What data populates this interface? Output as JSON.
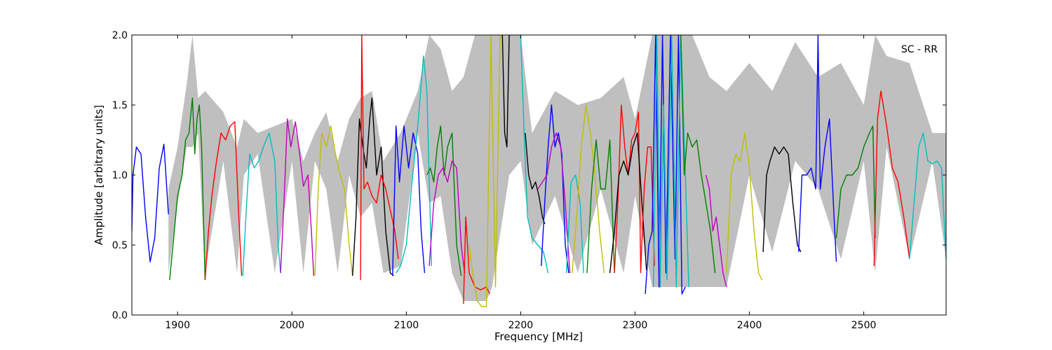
{
  "chart_data": {
    "type": "line",
    "title": "",
    "xlabel": "Frequency [MHz]",
    "ylabel": "Amplitude [arbitrary units]",
    "xlim": [
      1860,
      2572
    ],
    "ylim": [
      0,
      2.0
    ],
    "xticks": [
      1900,
      2000,
      2100,
      2200,
      2300,
      2400,
      2500
    ],
    "yticks": [
      0.0,
      0.5,
      1.0,
      1.5,
      2.0
    ],
    "xtick_labels": [
      "1900",
      "2000",
      "2100",
      "2200",
      "2300",
      "2400",
      "2500"
    ],
    "ytick_labels": [
      "0.0",
      "0.5",
      "1.0",
      "1.5",
      "2.0"
    ],
    "annotation": "SC - RR",
    "annotation_position": "top-right",
    "grid": false,
    "envelope": {
      "color": "#bfbfbf",
      "x": [
        1892,
        1900,
        1908,
        1913,
        1918,
        1924,
        1940,
        1952,
        1958,
        1970,
        1985,
        2000,
        2010,
        2020,
        2030,
        2040,
        2050,
        2060,
        2070,
        2080,
        2095,
        2110,
        2120,
        2130,
        2140,
        2150,
        2160,
        2170,
        2175,
        2190,
        2200,
        2210,
        2230,
        2250,
        2270,
        2290,
        2300,
        2315,
        2330,
        2350,
        2365,
        2380,
        2400,
        2420,
        2440,
        2460,
        2480,
        2500,
        2510,
        2520,
        2540,
        2560,
        2572
      ],
      "upper": [
        0.9,
        1.2,
        1.65,
        2.0,
        1.55,
        1.6,
        1.45,
        1.2,
        1.4,
        1.3,
        1.35,
        1.4,
        1.1,
        1.3,
        1.45,
        1.1,
        1.4,
        1.55,
        1.6,
        1.1,
        1.3,
        1.6,
        2.0,
        1.9,
        1.6,
        1.7,
        2.0,
        2.0,
        2.0,
        2.0,
        2.0,
        1.3,
        1.6,
        1.5,
        1.55,
        1.7,
        1.4,
        2.0,
        2.0,
        2.0,
        1.7,
        1.6,
        1.8,
        1.6,
        1.95,
        1.7,
        1.8,
        1.5,
        2.0,
        1.85,
        1.8,
        1.3,
        1.3
      ],
      "lower": [
        0.3,
        0.8,
        1.2,
        1.2,
        1.3,
        0.3,
        1.1,
        0.3,
        1.0,
        1.15,
        0.3,
        1.1,
        0.3,
        1.1,
        0.9,
        0.3,
        1.0,
        0.7,
        0.8,
        0.3,
        0.35,
        1.3,
        0.8,
        0.85,
        0.3,
        0.1,
        0.1,
        0.1,
        0.2,
        1.0,
        1.1,
        0.5,
        0.85,
        0.3,
        0.9,
        0.3,
        0.85,
        0.2,
        0.2,
        0.2,
        0.2,
        0.2,
        1.0,
        0.45,
        1.1,
        0.9,
        0.4,
        1.1,
        0.3,
        1.2,
        0.4,
        1.1,
        0.4
      ]
    },
    "series": [
      {
        "color": "#0000ff",
        "x": [
          1860,
          1861,
          1864,
          1868,
          1872,
          1876,
          1880,
          1884,
          1888,
          1892
        ],
        "y": [
          0.6,
          1.0,
          1.2,
          1.15,
          0.7,
          0.38,
          0.55,
          1.05,
          1.22,
          0.72
        ]
      },
      {
        "color": "#008000",
        "x": [
          1893,
          1896,
          1900,
          1904,
          1907,
          1910,
          1913,
          1915,
          1917,
          1919,
          1921,
          1924
        ],
        "y": [
          0.25,
          0.5,
          0.85,
          1.0,
          1.25,
          1.3,
          1.55,
          1.15,
          1.4,
          1.5,
          1.2,
          0.25
        ]
      },
      {
        "color": "#ff0000",
        "x": [
          1924,
          1927,
          1930,
          1934,
          1938,
          1942,
          1946,
          1950,
          1953,
          1956
        ],
        "y": [
          0.25,
          0.6,
          0.85,
          1.1,
          1.3,
          1.25,
          1.35,
          1.38,
          0.8,
          0.28
        ]
      },
      {
        "color": "#00bfbf",
        "x": [
          1957,
          1960,
          1963,
          1967,
          1971,
          1975,
          1980,
          1985,
          1988,
          1990
        ],
        "y": [
          0.28,
          0.75,
          1.15,
          1.05,
          1.1,
          1.2,
          1.3,
          1.1,
          0.5,
          0.3
        ]
      },
      {
        "color": "#bf00bf",
        "x": [
          1990,
          1993,
          1996,
          1999,
          2003,
          2006,
          2010,
          2014,
          2017,
          2019
        ],
        "y": [
          0.3,
          0.8,
          1.4,
          1.2,
          1.38,
          1.2,
          0.92,
          1.0,
          0.6,
          0.28
        ]
      },
      {
        "color": "#bfbf00",
        "x": [
          2020,
          2023,
          2026,
          2030,
          2034,
          2038,
          2042,
          2046,
          2050,
          2053
        ],
        "y": [
          0.28,
          0.9,
          1.3,
          1.2,
          1.35,
          1.15,
          1.0,
          0.9,
          0.5,
          0.28
        ]
      },
      {
        "color": "#000000",
        "x": [
          2053,
          2056,
          2059,
          2062,
          2065,
          2068,
          2070,
          2074,
          2078,
          2082,
          2086,
          2089
        ],
        "y": [
          0.28,
          0.7,
          1.4,
          1.2,
          1.05,
          1.4,
          1.55,
          1.0,
          1.2,
          0.6,
          0.3,
          0.28
        ]
      },
      {
        "color": "#ff0000",
        "x": [
          2060,
          2061,
          2063,
          2066,
          2070,
          2074,
          2078,
          2082,
          2086,
          2090,
          2093
        ],
        "y": [
          0.25,
          2.0,
          0.9,
          0.95,
          0.85,
          0.8,
          1.0,
          0.9,
          0.75,
          0.6,
          0.4
        ]
      },
      {
        "color": "#0000ff",
        "x": [
          2088,
          2091,
          2094,
          2098,
          2102,
          2106,
          2110,
          2113,
          2116
        ],
        "y": [
          0.28,
          1.35,
          0.95,
          1.35,
          1.05,
          1.3,
          1.15,
          0.6,
          0.3
        ]
      },
      {
        "color": "#00bfbf",
        "x": [
          2091,
          2095,
          2100,
          2105,
          2110,
          2115,
          2118,
          2122
        ],
        "y": [
          0.3,
          0.35,
          0.5,
          0.95,
          1.35,
          1.85,
          1.6,
          0.35
        ]
      },
      {
        "color": "#008000",
        "x": [
          2118,
          2121,
          2124,
          2127,
          2130,
          2133,
          2136,
          2140,
          2144,
          2148
        ],
        "y": [
          1.0,
          1.05,
          0.95,
          1.2,
          1.35,
          1.0,
          1.2,
          1.3,
          0.5,
          0.28
        ]
      },
      {
        "color": "#bf00bf",
        "x": [
          2120,
          2124,
          2128,
          2132,
          2136,
          2140,
          2144,
          2148,
          2151
        ],
        "y": [
          0.35,
          0.8,
          1.0,
          1.05,
          0.95,
          1.1,
          1.05,
          0.5,
          0.3
        ]
      },
      {
        "color": "#ff0000",
        "x": [
          2150,
          2152,
          2155,
          2160,
          2165,
          2170,
          2173
        ],
        "y": [
          0.08,
          0.7,
          0.3,
          0.2,
          0.18,
          0.2,
          0.15
        ]
      },
      {
        "color": "#bfbf00",
        "x": [
          2155,
          2158,
          2162,
          2166,
          2170,
          2174,
          2178,
          2182
        ],
        "y": [
          0.5,
          0.3,
          0.1,
          0.06,
          0.06,
          2.0,
          0.2,
          2.0
        ]
      },
      {
        "color": "#000000",
        "x": [
          2184,
          2186,
          2188,
          2190
        ],
        "y": [
          2.0,
          1.3,
          1.2,
          2.0
        ]
      },
      {
        "color": "#00bfbf",
        "x": [
          2200,
          2203,
          2206,
          2210,
          2215,
          2220,
          2224
        ],
        "y": [
          2.0,
          1.3,
          0.7,
          0.55,
          0.5,
          0.45,
          0.3
        ]
      },
      {
        "color": "#000000",
        "x": [
          2204,
          2207,
          2210,
          2213,
          2216,
          2219,
          2221
        ],
        "y": [
          1.3,
          1.0,
          0.9,
          0.95,
          0.85,
          0.7,
          0.65
        ]
      },
      {
        "color": "#0000ff",
        "x": [
          2218,
          2221,
          2224,
          2227,
          2230,
          2233,
          2236,
          2239,
          2242
        ],
        "y": [
          0.35,
          0.8,
          1.2,
          1.5,
          1.2,
          1.3,
          1.15,
          0.5,
          0.3
        ]
      },
      {
        "color": "#bf00bf",
        "x": [
          2215,
          2219,
          2223,
          2227,
          2231,
          2235,
          2239,
          2243
        ],
        "y": [
          0.9,
          0.95,
          1.0,
          1.2,
          1.3,
          1.2,
          0.8,
          0.3
        ]
      },
      {
        "color": "#00bfbf",
        "x": [
          2240,
          2244,
          2248,
          2252,
          2255
        ],
        "y": [
          0.3,
          0.95,
          1.0,
          0.8,
          0.3
        ]
      },
      {
        "color": "#bfbf00",
        "x": [
          2245,
          2249,
          2253,
          2257,
          2261,
          2265,
          2269,
          2273
        ],
        "y": [
          0.3,
          0.7,
          1.2,
          1.5,
          1.3,
          1.0,
          0.6,
          0.3
        ]
      },
      {
        "color": "#008000",
        "x": [
          2258,
          2262,
          2266,
          2270,
          2274,
          2278,
          2282
        ],
        "y": [
          0.3,
          0.9,
          1.25,
          0.9,
          0.9,
          1.25,
          0.3
        ]
      },
      {
        "color": "#ff0000",
        "x": [
          2282,
          2285,
          2288,
          2291,
          2294,
          2297,
          2300,
          2303,
          2305
        ],
        "y": [
          0.3,
          0.8,
          1.5,
          1.2,
          1.0,
          1.25,
          1.3,
          1.45,
          0.3
        ]
      },
      {
        "color": "#000000",
        "x": [
          2278,
          2282,
          2286,
          2290,
          2294,
          2298,
          2302,
          2306,
          2310
        ],
        "y": [
          0.3,
          0.6,
          1.0,
          1.1,
          1.0,
          1.2,
          1.3,
          0.8,
          0.32
        ]
      },
      {
        "color": "#ff0000",
        "x": [
          2305,
          2308,
          2311,
          2314,
          2317
        ],
        "y": [
          0.32,
          0.9,
          1.2,
          1.2,
          0.35
        ]
      },
      {
        "color": "#0000ff",
        "x": [
          2309,
          2312,
          2315,
          2318,
          2321,
          2324,
          2327,
          2331,
          2335,
          2338,
          2341,
          2344
        ],
        "y": [
          0.15,
          0.5,
          0.6,
          2.0,
          0.2,
          2.0,
          0.3,
          2.0,
          0.4,
          2.0,
          0.15,
          0.2
        ]
      },
      {
        "color": "#00bfbf",
        "x": [
          2316,
          2319,
          2322,
          2325,
          2328,
          2332,
          2336,
          2340,
          2344,
          2347
        ],
        "y": [
          0.2,
          2.0,
          0.2,
          1.5,
          0.25,
          2.0,
          0.2,
          2.0,
          1.0,
          0.2
        ]
      },
      {
        "color": "#008000",
        "x": [
          2340,
          2343,
          2346,
          2350,
          2354,
          2358,
          2362,
          2366,
          2370
        ],
        "y": [
          2.0,
          1.0,
          1.3,
          1.2,
          1.25,
          1.0,
          0.8,
          0.6,
          0.3
        ]
      },
      {
        "color": "#bf00bf",
        "x": [
          2362,
          2365,
          2368,
          2371,
          2374,
          2377,
          2380
        ],
        "y": [
          1.0,
          0.9,
          0.6,
          0.7,
          0.5,
          0.3,
          0.2
        ]
      },
      {
        "color": "#bfbf00",
        "x": [
          2380,
          2384,
          2388,
          2392,
          2396,
          2400,
          2404,
          2408,
          2411
        ],
        "y": [
          0.3,
          1.0,
          1.15,
          1.1,
          1.3,
          1.05,
          0.6,
          0.3,
          0.25
        ]
      },
      {
        "color": "#000000",
        "x": [
          2412,
          2415,
          2418,
          2422,
          2426,
          2430,
          2434,
          2438,
          2442,
          2445
        ],
        "y": [
          0.45,
          1.0,
          1.1,
          1.2,
          1.15,
          1.2,
          1.15,
          0.8,
          0.5,
          0.45
        ]
      },
      {
        "color": "#0000ff",
        "x": [
          2443,
          2446,
          2450,
          2454,
          2458,
          2460,
          2462,
          2466,
          2470,
          2474,
          2476
        ],
        "y": [
          0.45,
          1.0,
          1.0,
          1.05,
          0.9,
          2.0,
          0.9,
          1.2,
          1.4,
          0.7,
          0.38
        ]
      },
      {
        "color": "#008000",
        "x": [
          2476,
          2480,
          2485,
          2490,
          2495,
          2500,
          2505,
          2508,
          2510
        ],
        "y": [
          0.55,
          0.9,
          1.0,
          1.0,
          1.05,
          1.2,
          1.3,
          1.35,
          0.55
        ]
      },
      {
        "color": "#ff0000",
        "x": [
          2509,
          2512,
          2515,
          2520,
          2525,
          2530,
          2535,
          2540
        ],
        "y": [
          0.35,
          1.4,
          1.6,
          1.35,
          1.05,
          0.95,
          0.7,
          0.4
        ]
      },
      {
        "color": "#00bfbf",
        "x": [
          2540,
          2544,
          2548,
          2552,
          2556,
          2560,
          2564,
          2568,
          2572
        ],
        "y": [
          0.4,
          0.8,
          1.2,
          1.3,
          1.1,
          1.08,
          1.1,
          1.05,
          0.4
        ]
      }
    ]
  }
}
